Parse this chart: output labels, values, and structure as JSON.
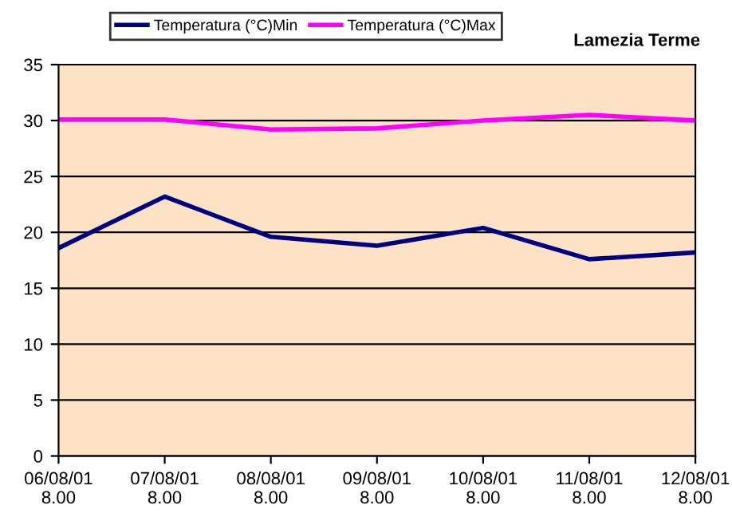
{
  "chart_data": {
    "type": "line",
    "title": "Lamezia Terme",
    "categories": [
      "06/08/01\n8.00",
      "07/08/01\n8.00",
      "08/08/01\n8.00",
      "09/08/01\n8.00",
      "10/08/01\n8.00",
      "11/08/01\n8.00",
      "12/08/01\n8.00"
    ],
    "series": [
      {
        "name": "Temperatura (°C)Min",
        "color": "#000080",
        "values": [
          18.6,
          23.2,
          19.6,
          18.8,
          20.4,
          17.6,
          18.2
        ]
      },
      {
        "name": "Temperatura (°C)Max",
        "color": "#ff00ff",
        "values": [
          30.1,
          30.1,
          29.2,
          29.3,
          30.0,
          30.5,
          30.0
        ]
      }
    ],
    "ylim": [
      0,
      35
    ],
    "yticks": [
      0,
      5,
      10,
      15,
      20,
      25,
      30,
      35
    ],
    "grid": "y",
    "legend": "top",
    "marker": "none",
    "line_style": "solid"
  }
}
